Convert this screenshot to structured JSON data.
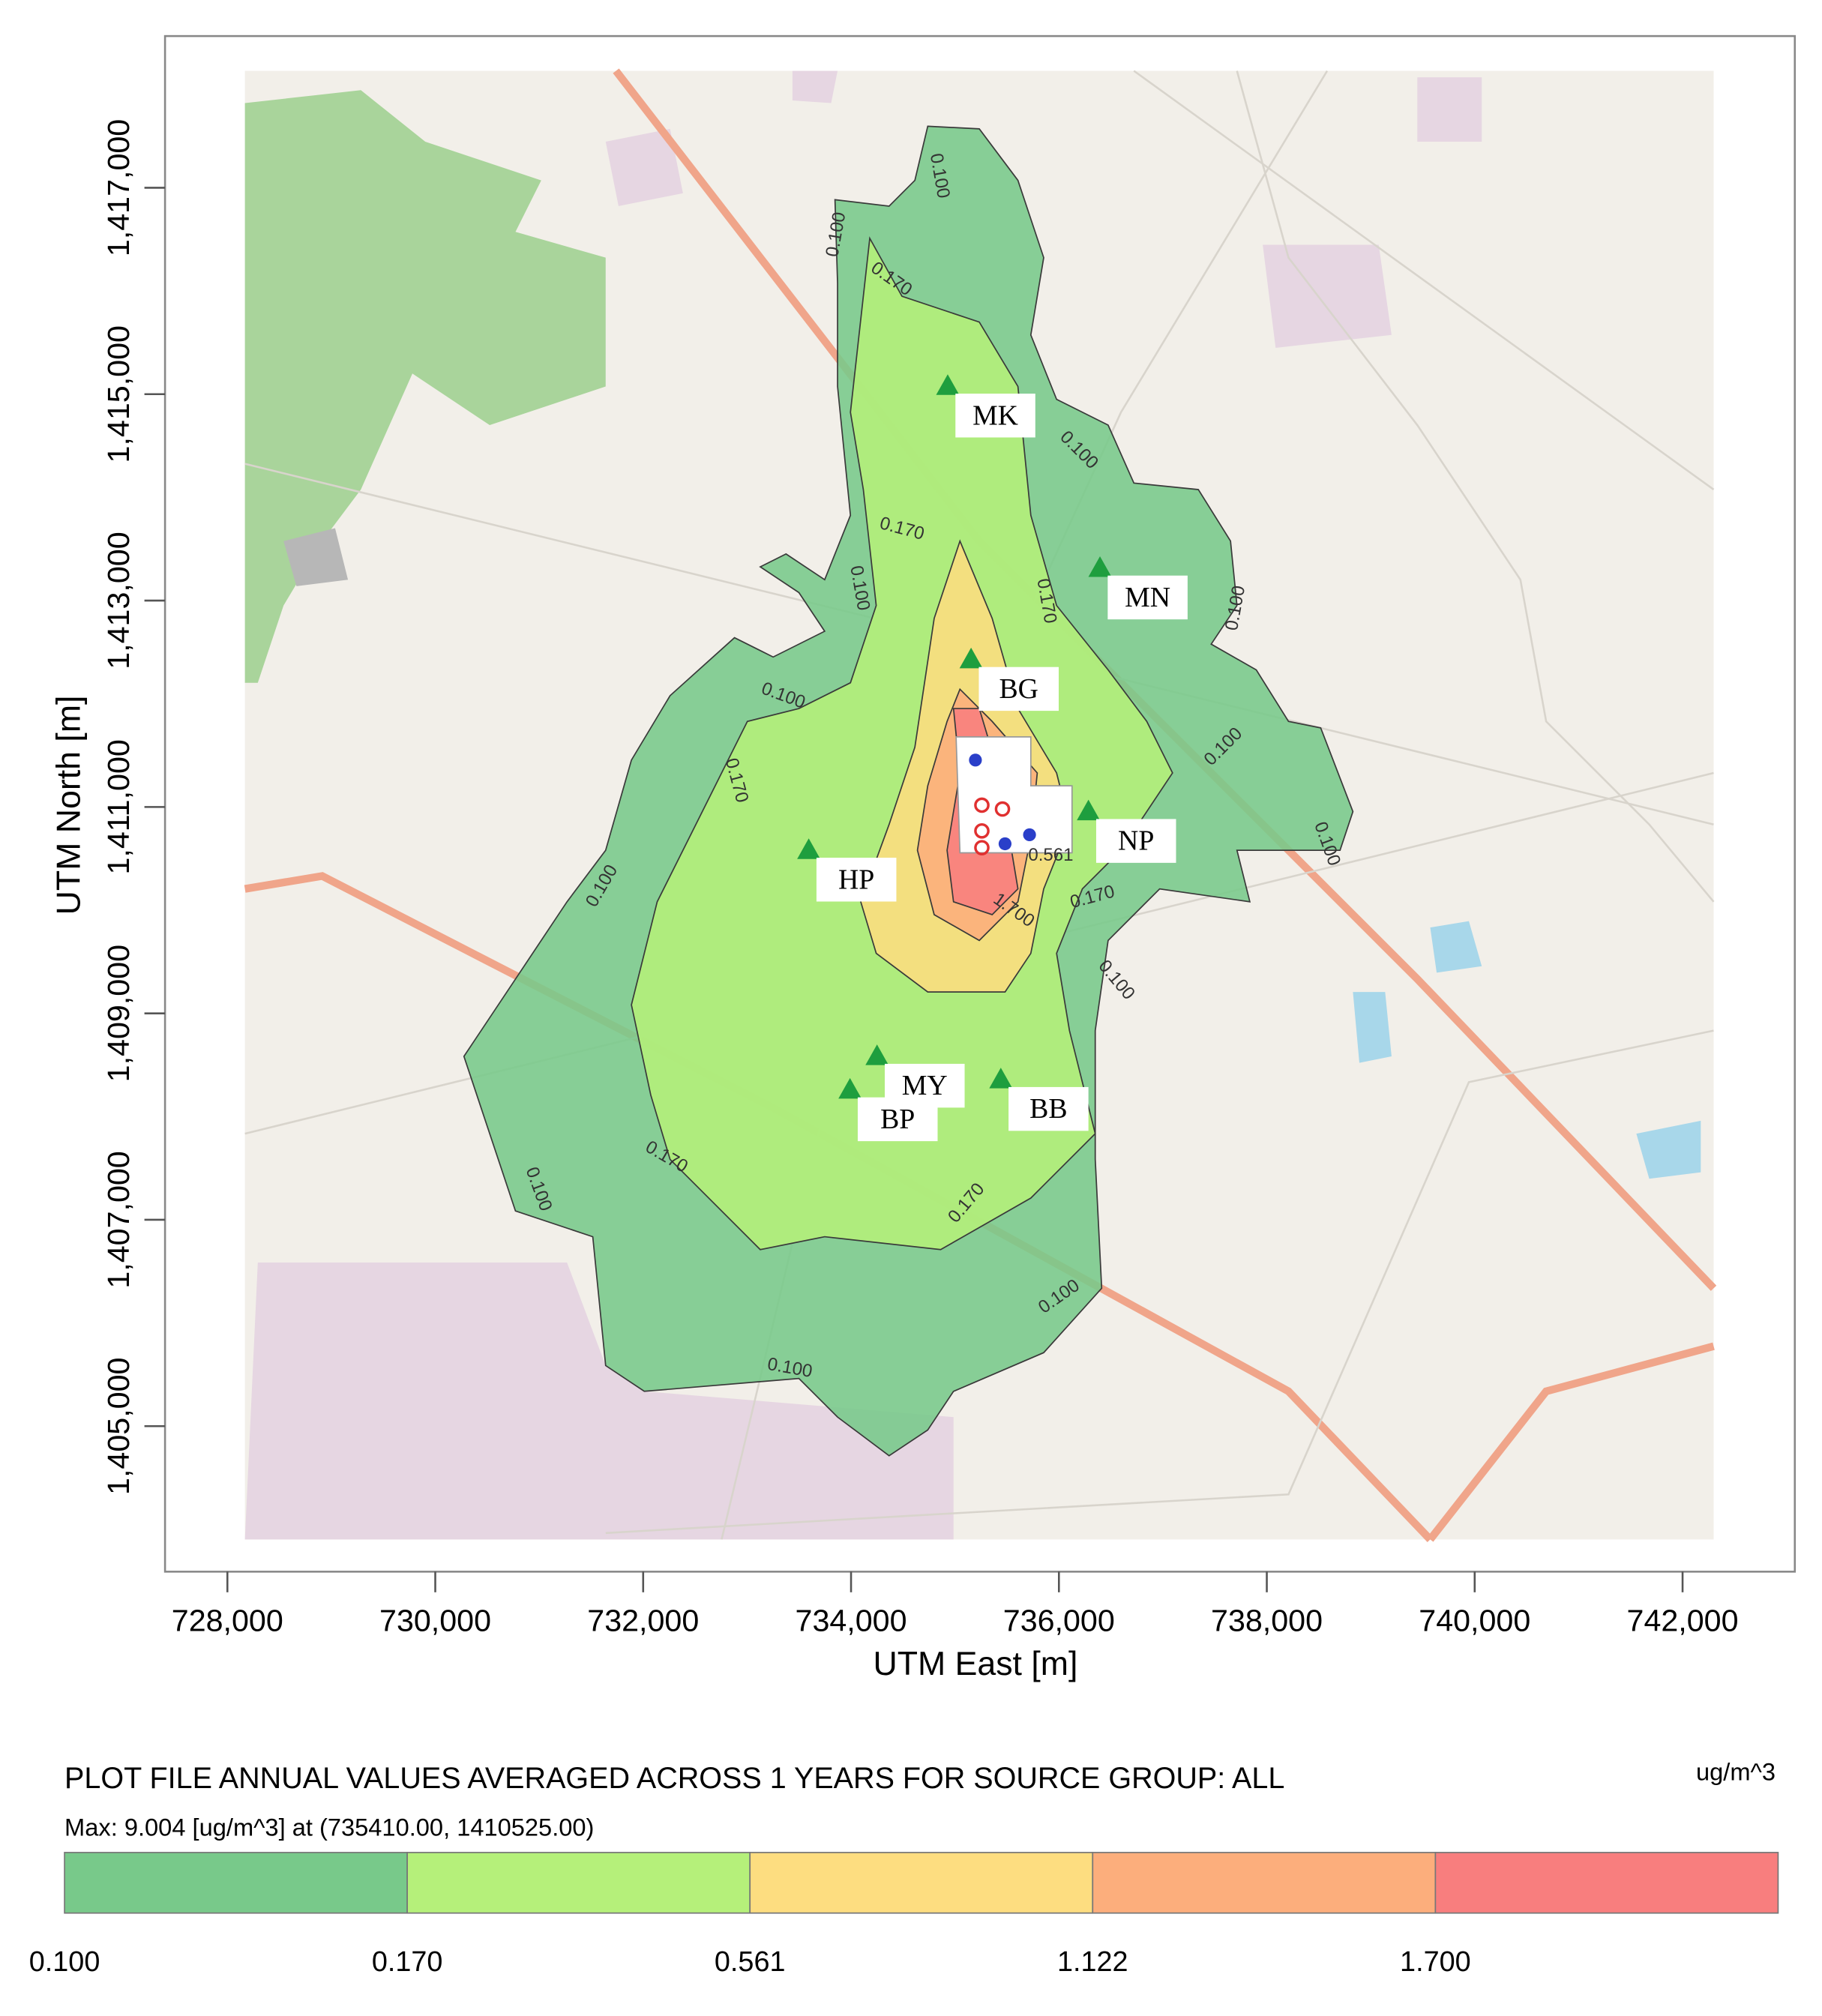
{
  "chart_data": {
    "type": "contour",
    "title": "PLOT FILE ANNUAL VALUES AVERAGED ACROSS 1 YEARS FOR SOURCE GROUP: ALL",
    "subtitle": "Max: 9.004 [ug/m^3]  at (735410.00, 1410525.00)",
    "units": "ug/m^3",
    "x_label": "UTM East [m]",
    "y_label": "UTM North [m]",
    "xlim": [
      727400,
      743080
    ],
    "ylim": [
      1403590,
      1418470
    ],
    "xticks": [
      {
        "value": 728000,
        "label": "728,000"
      },
      {
        "value": 730000,
        "label": "730,000"
      },
      {
        "value": 732000,
        "label": "732,000"
      },
      {
        "value": 734000,
        "label": "734,000"
      },
      {
        "value": 736000,
        "label": "736,000"
      },
      {
        "value": 738000,
        "label": "738,000"
      },
      {
        "value": 740000,
        "label": "740,000"
      },
      {
        "value": 742000,
        "label": "742,000"
      }
    ],
    "yticks": [
      {
        "value": 1405000,
        "label": "1,405,000"
      },
      {
        "value": 1407000,
        "label": "1,407,000"
      },
      {
        "value": 1409000,
        "label": "1,409,000"
      },
      {
        "value": 1411000,
        "label": "1,411,000"
      },
      {
        "value": 1413000,
        "label": "1,413,000"
      },
      {
        "value": 1415000,
        "label": "1,415,000"
      },
      {
        "value": 1417000,
        "label": "1,417,000"
      }
    ],
    "levels": [
      {
        "value": 0.1,
        "label": "0.100",
        "color": "#78c98a"
      },
      {
        "value": 0.17,
        "label": "0.170",
        "color": "#b5f07a"
      },
      {
        "value": 0.561,
        "label": "0.561",
        "color": "#fddd80"
      },
      {
        "value": 1.122,
        "label": "1.122",
        "color": "#fcae7c"
      },
      {
        "value": 1.7,
        "label": "1.700",
        "color": "#f87e7e"
      }
    ],
    "receptors": {
      "names": [
        "MK",
        "MN",
        "BG",
        "NP",
        "HP",
        "MY",
        "BP",
        "BB"
      ],
      "x": [
        734930,
        736395,
        735155,
        736284,
        733593,
        734250,
        733990,
        735441
      ],
      "y": [
        1415080,
        1413317,
        1412431,
        1410958,
        1410583,
        1408586,
        1408261,
        1408361
      ],
      "color": "#1e9e3e"
    }
  }
}
